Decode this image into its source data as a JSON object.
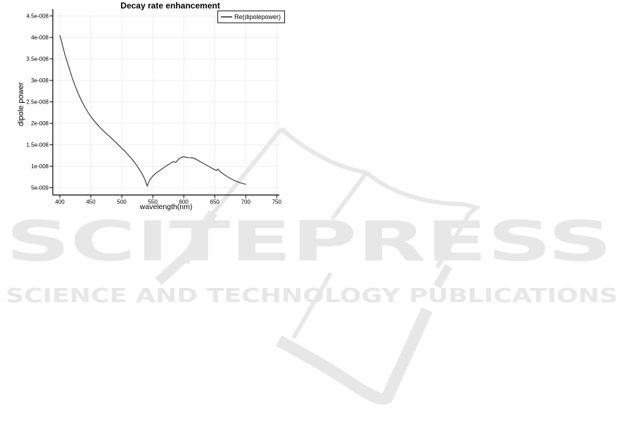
{
  "watermark": {
    "line1": "SCITEPRESS",
    "line2": "SCIENCE AND TECHNOLOGY PUBLICATIONS",
    "color": "#e7e7e7"
  },
  "chart_data": {
    "type": "line",
    "title": "Decay rate enhancement",
    "xlabel": "wavelength(nm)",
    "ylabel": "dipole power",
    "grid": true,
    "legend_position": "top-right",
    "legend": [
      {
        "label": "Re(dipolepower)",
        "sample_color": "#5a5a5a"
      }
    ],
    "xlim": [
      388,
      755
    ],
    "ylim": [
      3.5e-09,
      4.65e-08
    ],
    "x_ticks": [
      400,
      450,
      500,
      550,
      600,
      650,
      700,
      750
    ],
    "y_ticks": [
      {
        "value": 5e-09,
        "label": "5e-009"
      },
      {
        "value": 1e-08,
        "label": "1e-008"
      },
      {
        "value": 1.5e-08,
        "label": "1.5e-008"
      },
      {
        "value": 2e-08,
        "label": "2e-008"
      },
      {
        "value": 2.5e-08,
        "label": "2.5e-008"
      },
      {
        "value": 3e-08,
        "label": "3e-008"
      },
      {
        "value": 3.5e-08,
        "label": "3.5e-008"
      },
      {
        "value": 4e-08,
        "label": "4e-008"
      },
      {
        "value": 4.5e-08,
        "label": "4.5e-008"
      }
    ],
    "series": [
      {
        "name": "Re(dipolepower)",
        "color": "#2a2a2a",
        "points": [
          [
            400,
            4.05e-08
          ],
          [
            402,
            3.95e-08
          ],
          [
            405,
            3.78e-08
          ],
          [
            408,
            3.62e-08
          ],
          [
            410,
            3.52e-08
          ],
          [
            413,
            3.38e-08
          ],
          [
            416,
            3.24e-08
          ],
          [
            420,
            3.06e-08
          ],
          [
            424,
            2.9e-08
          ],
          [
            428,
            2.75e-08
          ],
          [
            432,
            2.62e-08
          ],
          [
            436,
            2.5e-08
          ],
          [
            440,
            2.39e-08
          ],
          [
            444,
            2.29e-08
          ],
          [
            448,
            2.2e-08
          ],
          [
            452,
            2.12e-08
          ],
          [
            456,
            2.05e-08
          ],
          [
            460,
            1.98e-08
          ],
          [
            465,
            1.9e-08
          ],
          [
            470,
            1.83e-08
          ],
          [
            475,
            1.76e-08
          ],
          [
            480,
            1.7e-08
          ],
          [
            485,
            1.63e-08
          ],
          [
            490,
            1.56e-08
          ],
          [
            495,
            1.49e-08
          ],
          [
            500,
            1.42e-08
          ],
          [
            505,
            1.35e-08
          ],
          [
            510,
            1.27e-08
          ],
          [
            515,
            1.19e-08
          ],
          [
            520,
            1.1e-08
          ],
          [
            525,
            1e-08
          ],
          [
            530,
            8.9e-09
          ],
          [
            534,
            7.9e-09
          ],
          [
            537,
            7e-09
          ],
          [
            539,
            6.2e-09
          ],
          [
            541,
            5.4e-09
          ],
          [
            543,
            6.2e-09
          ],
          [
            546,
            7e-09
          ],
          [
            550,
            7.7e-09
          ],
          [
            555,
            8.4e-09
          ],
          [
            560,
            8.9e-09
          ],
          [
            565,
            9.4e-09
          ],
          [
            570,
            9.9e-09
          ],
          [
            575,
            1.04e-08
          ],
          [
            580,
            1.08e-08
          ],
          [
            583,
            1.11e-08
          ],
          [
            585,
            1.1e-08
          ],
          [
            587,
            1.09e-08
          ],
          [
            590,
            1.14e-08
          ],
          [
            593,
            1.18e-08
          ],
          [
            596,
            1.21e-08
          ],
          [
            600,
            1.22e-08
          ],
          [
            604,
            1.21e-08
          ],
          [
            608,
            1.2e-08
          ],
          [
            612,
            1.2e-08
          ],
          [
            616,
            1.19e-08
          ],
          [
            620,
            1.16e-08
          ],
          [
            625,
            1.12e-08
          ],
          [
            630,
            1.08e-08
          ],
          [
            635,
            1.04e-08
          ],
          [
            640,
            1e-08
          ],
          [
            645,
            9.6e-09
          ],
          [
            650,
            9.2e-09
          ],
          [
            653,
            9e-09
          ],
          [
            655,
            9.4e-09
          ],
          [
            657,
            9e-09
          ],
          [
            660,
            8.6e-09
          ],
          [
            665,
            8.1e-09
          ],
          [
            670,
            7.6e-09
          ],
          [
            675,
            7.2e-09
          ],
          [
            680,
            6.8e-09
          ],
          [
            685,
            6.5e-09
          ],
          [
            690,
            6.2e-09
          ],
          [
            695,
            6e-09
          ],
          [
            700,
            5.8e-09
          ]
        ]
      }
    ]
  }
}
